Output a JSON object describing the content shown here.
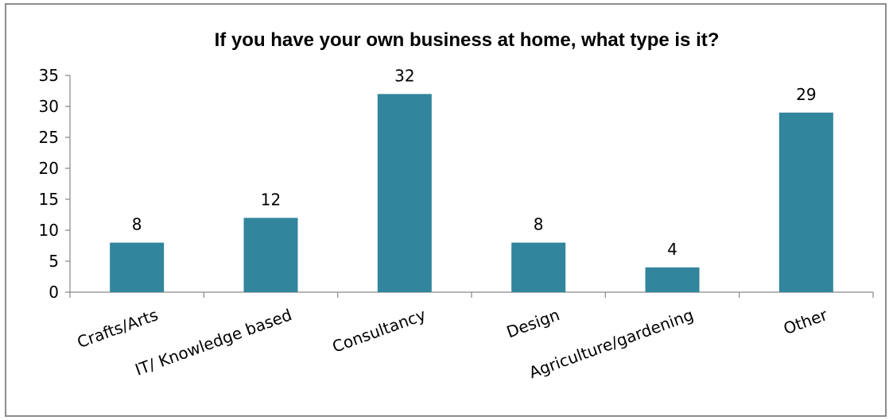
{
  "chart_data": {
    "type": "bar",
    "title": "If you have your own business at home, what type is it?",
    "categories": [
      "Crafts/Arts",
      "IT/ Knowledge based",
      "Consultancy",
      "Design",
      "Agriculture/gardening",
      "Other"
    ],
    "values": [
      8,
      12,
      32,
      8,
      4,
      29
    ],
    "data_labels": [
      "8",
      "12",
      "32",
      "8",
      "4",
      "29"
    ],
    "ylim": [
      0,
      35
    ],
    "yticks": [
      0,
      5,
      10,
      15,
      20,
      25,
      30,
      35
    ],
    "ytick_labels": [
      "0",
      "5",
      "10",
      "15",
      "20",
      "25",
      "30",
      "35"
    ],
    "bar_color": "#31859c",
    "grid": false,
    "legend": "none"
  }
}
